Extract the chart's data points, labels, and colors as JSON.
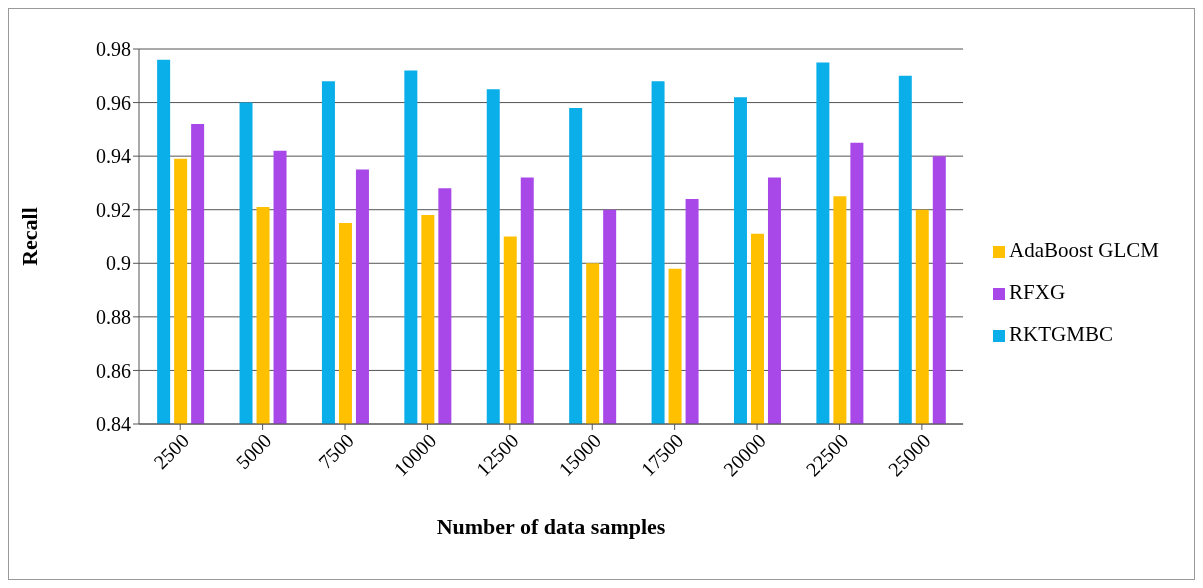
{
  "chart_data": {
    "type": "bar",
    "xlabel": "Number of data samples",
    "ylabel": "Recall",
    "categories": [
      "2500",
      "5000",
      "7500",
      "10000",
      "12500",
      "15000",
      "17500",
      "20000",
      "22500",
      "25000"
    ],
    "series": [
      {
        "name": "RKTGMBC",
        "color": "#0aaee8",
        "values": [
          0.976,
          0.96,
          0.968,
          0.972,
          0.965,
          0.958,
          0.968,
          0.962,
          0.975,
          0.97
        ]
      },
      {
        "name": "AdaBoost GLCM",
        "color": "#ffc000",
        "values": [
          0.939,
          0.921,
          0.915,
          0.918,
          0.91,
          0.9,
          0.898,
          0.911,
          0.925,
          0.92
        ]
      },
      {
        "name": "RFXG",
        "color": "#a848e8",
        "values": [
          0.952,
          0.942,
          0.935,
          0.928,
          0.932,
          0.92,
          0.924,
          0.932,
          0.945,
          0.94
        ]
      }
    ],
    "ylim": [
      0.84,
      0.98
    ],
    "yticks": [
      0.84,
      0.86,
      0.88,
      0.9,
      0.92,
      0.94,
      0.96,
      0.98
    ],
    "grid": "y",
    "legend": "right"
  }
}
